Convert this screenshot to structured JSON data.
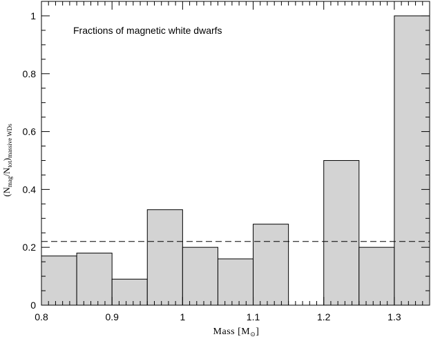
{
  "chart_data": {
    "type": "bar",
    "title": "Fractions of magnetic white dwarfs",
    "xlabel": {
      "text": "Mass [M",
      "subscript": "⊙",
      "close": "]"
    },
    "ylabel": {
      "open": "(N",
      "sub1": "mag",
      "mid": "/N",
      "sub2": "tot",
      "close": ")",
      "sub3": "massive WDs"
    },
    "xlim": [
      0.8,
      1.35
    ],
    "ylim": [
      0,
      1.05
    ],
    "xticks": [
      0.8,
      0.9,
      1.0,
      1.1,
      1.2,
      1.3
    ],
    "xtick_labels": [
      "0.8",
      "0.9",
      "1",
      "1.1",
      "1.2",
      "1.3"
    ],
    "yticks": [
      0,
      0.2,
      0.4,
      0.6,
      0.8,
      1.0
    ],
    "ytick_labels": [
      "0",
      "0.2",
      "0.4",
      "0.6",
      "0.8",
      "1"
    ],
    "bin_width": 0.05,
    "bins": [
      {
        "x0": 0.8,
        "value": 0.17
      },
      {
        "x0": 0.85,
        "value": 0.18
      },
      {
        "x0": 0.9,
        "value": 0.09
      },
      {
        "x0": 0.95,
        "value": 0.33
      },
      {
        "x0": 1.0,
        "value": 0.2
      },
      {
        "x0": 1.05,
        "value": 0.16
      },
      {
        "x0": 1.1,
        "value": 0.28
      },
      {
        "x0": 1.2,
        "value": 0.5
      },
      {
        "x0": 1.25,
        "value": 0.2
      },
      {
        "x0": 1.3,
        "value": 1.0
      }
    ],
    "reference_line": {
      "y": 0.22,
      "style": "dashed"
    },
    "colors": {
      "bar_fill": "#d3d3d3",
      "bar_stroke": "#000000",
      "axis": "#000000"
    },
    "grid": false
  }
}
